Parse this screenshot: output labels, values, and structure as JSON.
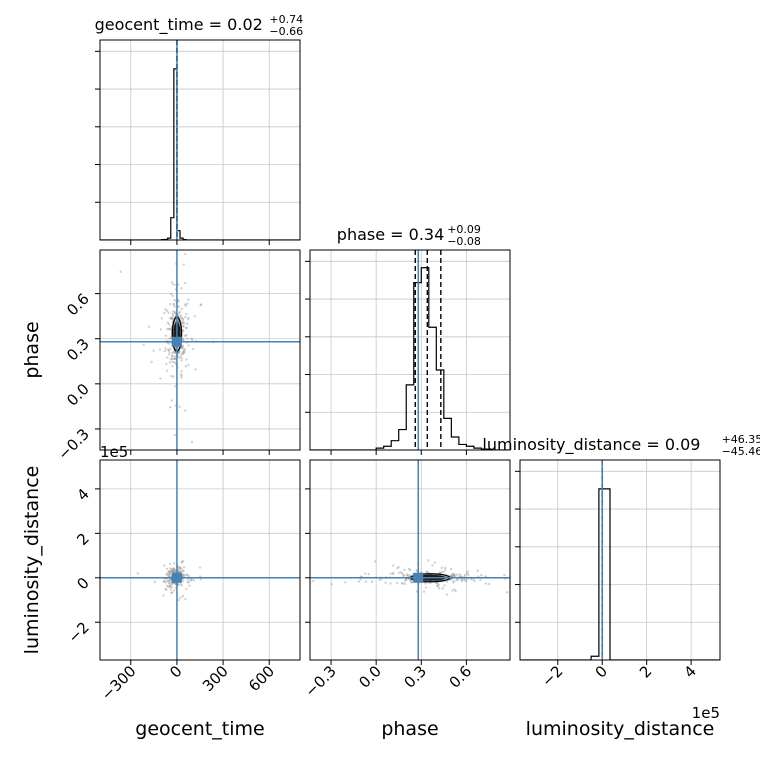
{
  "chart_data": {
    "type": "corner",
    "truth_color": "#4682b4",
    "contour_color": "#000000",
    "grid": true,
    "parameters": [
      {
        "name": "geocent_time",
        "axis_label": "geocent_time",
        "title": {
          "prefix": "geocent_time = ",
          "value": "0.02",
          "plus": "+0.74",
          "minus": "−0.66"
        },
        "range": [
          -500,
          800
        ],
        "ticks": [
          {
            "value": -300,
            "label": "−300"
          },
          {
            "value": 0,
            "label": "0"
          },
          {
            "value": 300,
            "label": "300"
          },
          {
            "value": 600,
            "label": "600"
          }
        ],
        "truth": 0,
        "offset_label": "",
        "quantile_lines": [
          -0.64,
          0.02,
          0.76
        ],
        "histogram": {
          "edges": [
            -100,
            -80,
            -60,
            -40,
            -20,
            0,
            20,
            40,
            60
          ],
          "density": [
            0.002,
            0.003,
            0.01,
            0.12,
            0.92,
            0.05,
            0.01,
            0.002
          ]
        }
      },
      {
        "name": "phase",
        "axis_label": "phase",
        "title": {
          "prefix": "phase = ",
          "value": "0.34",
          "plus": "+0.09",
          "minus": "−0.08"
        },
        "range": [
          -0.44,
          0.89
        ],
        "ticks": [
          {
            "value": -0.3,
            "label": "−0.3"
          },
          {
            "value": 0.0,
            "label": "0.0"
          },
          {
            "value": 0.3,
            "label": "0.3"
          },
          {
            "value": 0.6,
            "label": "0.6"
          }
        ],
        "truth": 0.28,
        "offset_label": "",
        "quantile_lines": [
          0.26,
          0.34,
          0.43
        ],
        "histogram": {
          "edges": [
            0.0,
            0.05,
            0.1,
            0.15,
            0.2,
            0.25,
            0.3,
            0.35,
            0.4,
            0.45,
            0.5,
            0.55,
            0.6,
            0.65,
            0.7,
            0.75
          ],
          "density": [
            0.01,
            0.02,
            0.05,
            0.11,
            0.35,
            0.9,
            0.98,
            0.66,
            0.43,
            0.17,
            0.07,
            0.03,
            0.02,
            0.01,
            0.005
          ]
        }
      },
      {
        "name": "luminosity_distance",
        "axis_label": "luminosity_distance",
        "title": {
          "prefix": "luminosity_distance = ",
          "value": "0.09",
          "plus": "+46.35",
          "minus": "−45.46"
        },
        "range": [
          -3.7,
          5.3
        ],
        "ticks": [
          {
            "value": -2,
            "label": "−2"
          },
          {
            "value": 0,
            "label": "0"
          },
          {
            "value": 2,
            "label": "2"
          },
          {
            "value": 4,
            "label": "4"
          }
        ],
        "truth": 0,
        "offset_label": "1e5",
        "quantile_lines": [
          -0.0045,
          0.0,
          0.0046
        ],
        "histogram": {
          "edges": [
            -0.5,
            -0.15,
            0.0,
            0.35,
            0.7
          ],
          "density": [
            0.02,
            0.92,
            0.92,
            0.0
          ]
        }
      }
    ],
    "pairs": [
      {
        "x": "geocent_time",
        "y": "phase",
        "core": {
          "cx": 0,
          "cy": 0.33,
          "rx": 30,
          "ry": 0.12
        },
        "samples_hint": "dense cluster near (0, 0.3) with wide scatter in x and a long tail in y"
      },
      {
        "x": "geocent_time",
        "y": "luminosity_distance",
        "core": {
          "cx": -5,
          "cy": 0.0,
          "rx": 25,
          "ry": 0.18
        },
        "samples_hint": "tight blob at (0, 0) spread along x"
      },
      {
        "x": "phase",
        "y": "luminosity_distance",
        "core": {
          "cx": 0.36,
          "cy": 0.0,
          "rx": 0.13,
          "ry": 0.14
        },
        "samples_hint": "elongated blob around phase 0.36, distance 0"
      }
    ]
  }
}
